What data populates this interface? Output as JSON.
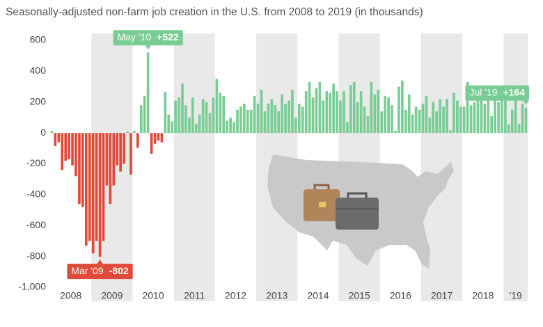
{
  "chart_data": {
    "type": "bar",
    "subtitle": "Seasonally-adjusted non-farm job creation in the U.S. from 2008 to 2019 (in thousands)",
    "x_labels": [
      "2008",
      "2009",
      "2010",
      "2011",
      "2012",
      "2013",
      "2014",
      "2015",
      "2016",
      "2017",
      "2018",
      "'19"
    ],
    "values": [
      14,
      -85,
      -60,
      -240,
      -180,
      -170,
      -210,
      -280,
      -460,
      -480,
      -730,
      -700,
      -780,
      -700,
      -802,
      -700,
      -340,
      -460,
      -340,
      -210,
      -250,
      -200,
      10,
      -270,
      14,
      -96,
      180,
      240,
      522,
      -135,
      -70,
      -50,
      -60,
      265,
      120,
      75,
      210,
      230,
      320,
      180,
      100,
      230,
      60,
      120,
      220,
      200,
      130,
      230,
      350,
      260,
      240,
      80,
      100,
      70,
      150,
      170,
      190,
      150,
      150,
      240,
      190,
      280,
      140,
      190,
      220,
      180,
      140,
      250,
      190,
      210,
      280,
      100,
      190,
      170,
      270,
      330,
      230,
      290,
      330,
      210,
      270,
      260,
      320,
      270,
      210,
      270,
      70,
      310,
      330,
      200,
      270,
      170,
      110,
      330,
      250,
      280,
      140,
      240,
      230,
      180,
      15,
      300,
      340,
      150,
      250,
      120,
      170,
      150,
      190,
      240,
      100,
      200,
      140,
      220,
      170,
      220,
      18,
      260,
      210,
      170,
      170,
      330,
      180,
      200,
      270,
      260,
      190,
      280,
      110,
      280,
      200,
      230,
      310,
      55,
      150,
      215,
      60,
      190,
      164
    ],
    "positive_color": "#78cc94",
    "negative_color": "#e04a3a",
    "band_color": "#e9e9e9",
    "ylim": [
      -1000,
      600
    ],
    "yticks": [
      600,
      400,
      200,
      0,
      -200,
      -400,
      -600,
      -800,
      {
        "value": -1000,
        "label": "-1,000"
      }
    ],
    "grid": false,
    "annotations": [
      {
        "label": "May '10",
        "value_label": "+522",
        "value": 522
      },
      {
        "label": "Mar '09",
        "value_label": "-802",
        "value": -802
      },
      {
        "label": "Jul '19",
        "value_label": "+164",
        "value": 164
      }
    ]
  }
}
